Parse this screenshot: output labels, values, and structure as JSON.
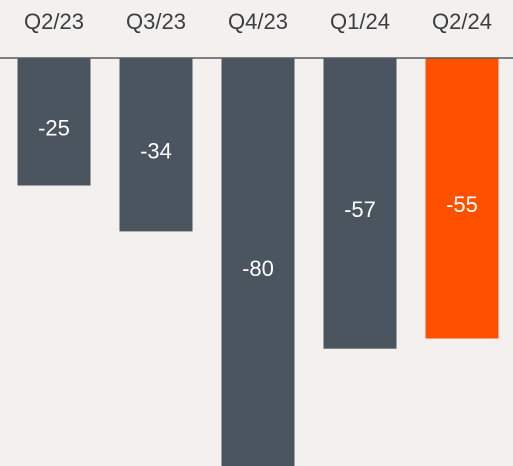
{
  "chart_data": {
    "type": "bar",
    "categories": [
      "Q2/23",
      "Q3/23",
      "Q4/23",
      "Q1/24",
      "Q2/24"
    ],
    "values": [
      -25,
      -34,
      -80,
      -57,
      -55
    ],
    "colors": [
      "#4a5560",
      "#4a5560",
      "#4a5560",
      "#4a5560",
      "#ff5000"
    ],
    "ylim": [
      -80,
      0
    ]
  }
}
